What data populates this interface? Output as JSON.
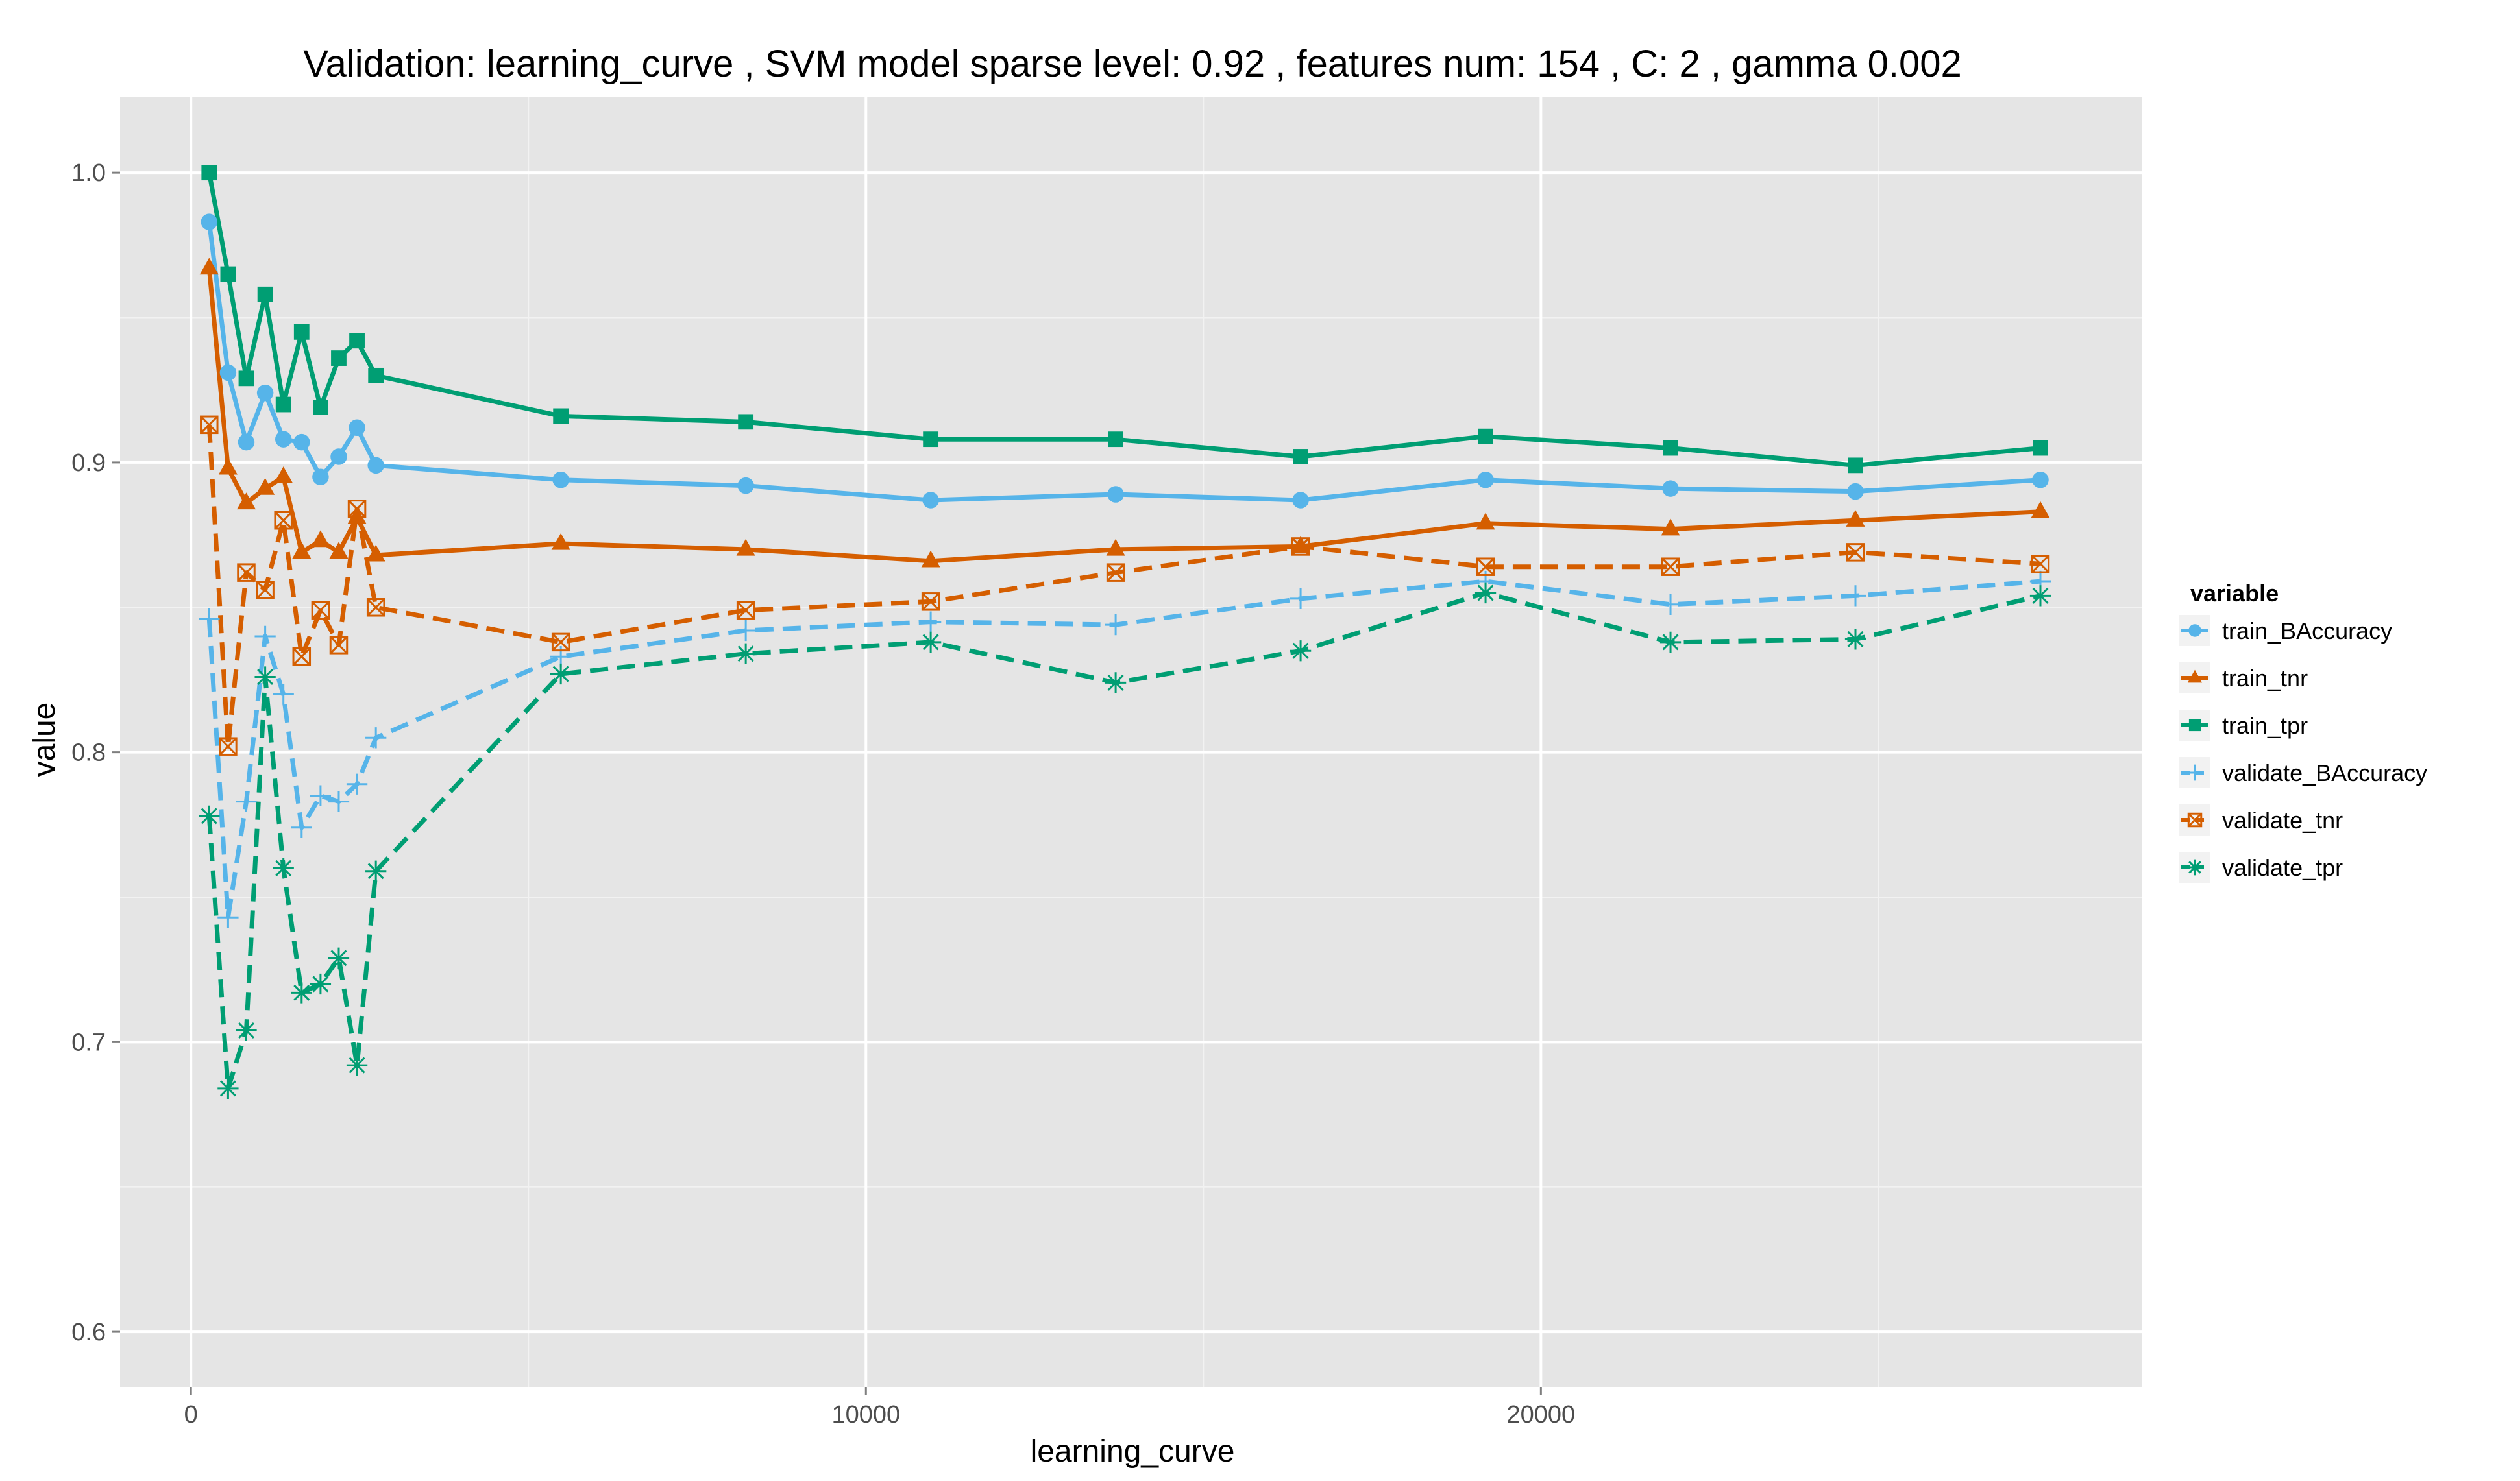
{
  "chart_data": {
    "type": "line",
    "title": "Validation:  learning_curve ,  SVM model sparse level: 0.92 , features num: 154 , C:  2 , gamma 0.002",
    "xlabel": "learning_curve",
    "ylabel": "value",
    "xlim": [
      -1050,
      28900
    ],
    "ylim": [
      0.581,
      1.026
    ],
    "x_ticks": [
      0,
      10000,
      20000
    ],
    "x_tick_labels": [
      "0",
      "10000",
      "20000"
    ],
    "x_minor_ticks": [
      5000,
      15000,
      25000
    ],
    "y_ticks": [
      0.6,
      0.7,
      0.8,
      0.9,
      1.0
    ],
    "y_tick_labels": [
      "0.6",
      "0.7",
      "0.8",
      "0.9",
      "1.0"
    ],
    "y_minor_ticks": [
      0.65,
      0.75,
      0.85,
      0.95
    ],
    "grid": true,
    "legend_title": "variable",
    "legend_position": "right",
    "series": [
      {
        "name": "train_BAccuracy",
        "color": "#56B4E9",
        "linetype": "solid",
        "shape": "circle",
        "x": [
          270,
          550,
          820,
          1100,
          1370,
          1640,
          1920,
          2190,
          2460,
          2740,
          5480,
          8220,
          10960,
          13700,
          16440,
          19180,
          21920,
          24660,
          27400
        ],
        "y": [
          0.983,
          0.931,
          0.907,
          0.924,
          0.908,
          0.907,
          0.895,
          0.902,
          0.912,
          0.899,
          0.894,
          0.892,
          0.887,
          0.889,
          0.887,
          0.894,
          0.891,
          0.89,
          0.894
        ]
      },
      {
        "name": "train_tnr",
        "color": "#D55E00",
        "linetype": "solid",
        "shape": "triangle",
        "x": [
          270,
          550,
          820,
          1100,
          1370,
          1640,
          1920,
          2190,
          2460,
          2740,
          5480,
          8220,
          10960,
          13700,
          16440,
          19180,
          21920,
          24660,
          27400
        ],
        "y": [
          0.967,
          0.898,
          0.886,
          0.891,
          0.895,
          0.869,
          0.873,
          0.869,
          0.881,
          0.868,
          0.872,
          0.87,
          0.866,
          0.87,
          0.871,
          0.879,
          0.877,
          0.88,
          0.883
        ]
      },
      {
        "name": "train_tpr",
        "color": "#009E73",
        "linetype": "solid",
        "shape": "square",
        "x": [
          270,
          550,
          820,
          1100,
          1370,
          1640,
          1920,
          2190,
          2460,
          2740,
          5480,
          8220,
          10960,
          13700,
          16440,
          19180,
          21920,
          24660,
          27400
        ],
        "y": [
          1.0,
          0.965,
          0.929,
          0.958,
          0.92,
          0.945,
          0.919,
          0.936,
          0.942,
          0.93,
          0.916,
          0.914,
          0.908,
          0.908,
          0.902,
          0.909,
          0.905,
          0.899,
          0.905
        ]
      },
      {
        "name": "validate_BAccuracy",
        "color": "#56B4E9",
        "linetype": "dashed",
        "shape": "plus",
        "x": [
          270,
          550,
          820,
          1100,
          1370,
          1640,
          1920,
          2190,
          2460,
          2740,
          5480,
          8220,
          10960,
          13700,
          16440,
          19180,
          21920,
          24660,
          27400
        ],
        "y": [
          0.846,
          0.743,
          0.783,
          0.84,
          0.82,
          0.774,
          0.785,
          0.783,
          0.789,
          0.805,
          0.833,
          0.842,
          0.845,
          0.844,
          0.853,
          0.859,
          0.851,
          0.854,
          0.859
        ]
      },
      {
        "name": "validate_tnr",
        "color": "#D55E00",
        "linetype": "dashed",
        "shape": "square-cross",
        "x": [
          270,
          550,
          820,
          1100,
          1370,
          1640,
          1920,
          2190,
          2460,
          2740,
          5480,
          8220,
          10960,
          13700,
          16440,
          19180,
          21920,
          24660,
          27400
        ],
        "y": [
          0.913,
          0.802,
          0.862,
          0.856,
          0.88,
          0.833,
          0.849,
          0.837,
          0.884,
          0.85,
          0.838,
          0.849,
          0.852,
          0.862,
          0.871,
          0.864,
          0.864,
          0.869,
          0.865
        ]
      },
      {
        "name": "validate_tpr",
        "color": "#009E73",
        "linetype": "dashed",
        "shape": "asterisk",
        "x": [
          270,
          550,
          820,
          1100,
          1370,
          1640,
          1920,
          2190,
          2460,
          2740,
          5480,
          8220,
          10960,
          13700,
          16440,
          19180,
          21920,
          24660,
          27400
        ],
        "y": [
          0.778,
          0.684,
          0.704,
          0.826,
          0.76,
          0.717,
          0.72,
          0.729,
          0.692,
          0.759,
          0.827,
          0.834,
          0.838,
          0.824,
          0.835,
          0.855,
          0.838,
          0.839,
          0.854
        ]
      }
    ]
  }
}
